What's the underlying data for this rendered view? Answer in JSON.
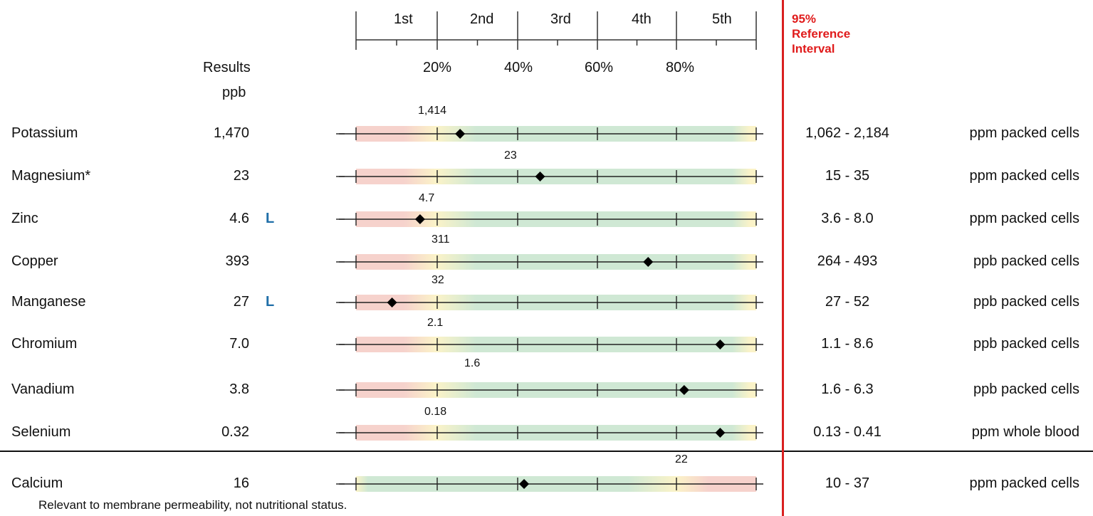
{
  "header": {
    "quintiles": [
      "1st",
      "2nd",
      "3rd",
      "4th",
      "5th"
    ],
    "percentiles": [
      "20%",
      "40%",
      "60%",
      "80%"
    ],
    "results_label": "Results",
    "units_label": "ppb",
    "reference_label_line1": "95%",
    "reference_label_line2": "Reference",
    "reference_label_line3": "Interval"
  },
  "rows": [
    {
      "name": "Potassium",
      "result": "1,470",
      "flag": "",
      "median": "1,414",
      "reference": "1,062 - 2,184",
      "unit": "ppm packed cells",
      "percentile": 0.26,
      "scheme": "normal"
    },
    {
      "name": "Magnesium*",
      "result": "23",
      "flag": "",
      "median": "23",
      "reference": "15 - 35",
      "unit": "ppm packed cells",
      "percentile": 0.46,
      "scheme": "normal"
    },
    {
      "name": "Zinc",
      "result": "4.6",
      "flag": "L",
      "median": "4.7",
      "reference": "3.6 - 8.0",
      "unit": "ppm packed cells",
      "percentile": 0.16,
      "scheme": "normal"
    },
    {
      "name": "Copper",
      "result": "393",
      "flag": "",
      "median": "311",
      "reference": "264 - 493",
      "unit": "ppb packed cells",
      "percentile": 0.73,
      "scheme": "normal"
    },
    {
      "name": "Manganese",
      "result": "27",
      "flag": "L",
      "median": "32",
      "reference": "27 - 52",
      "unit": "ppb packed cells",
      "percentile": 0.09,
      "scheme": "normal"
    },
    {
      "name": "Chromium",
      "result": "7.0",
      "flag": "",
      "median": "2.1",
      "reference": "1.1 - 8.6",
      "unit": "ppb packed cells",
      "percentile": 0.91,
      "scheme": "normal"
    },
    {
      "name": "Vanadium",
      "result": "3.8",
      "flag": "",
      "median": "1.6",
      "reference": "1.6 - 6.3",
      "unit": "ppb packed cells",
      "percentile": 0.82,
      "scheme": "normal"
    },
    {
      "name": "Selenium",
      "result": "0.32",
      "flag": "",
      "median": "0.18",
      "reference": "0.13 - 0.41",
      "unit": "ppm whole blood",
      "percentile": 0.91,
      "scheme": "normal"
    },
    {
      "name": "Calcium",
      "result": "16",
      "flag": "",
      "median": "22",
      "reference": "10 - 37",
      "unit": "ppm packed cells",
      "percentile": 0.42,
      "scheme": "inverse"
    }
  ],
  "footnote": "Relevant to membrane permeability, not nutritional status.",
  "colors": {
    "low": "#f6d2cc",
    "mid": "#fbf3c8",
    "normal": "#cfe8d4",
    "reference": "#e01b1b",
    "flag": "#1f6ea8"
  }
}
